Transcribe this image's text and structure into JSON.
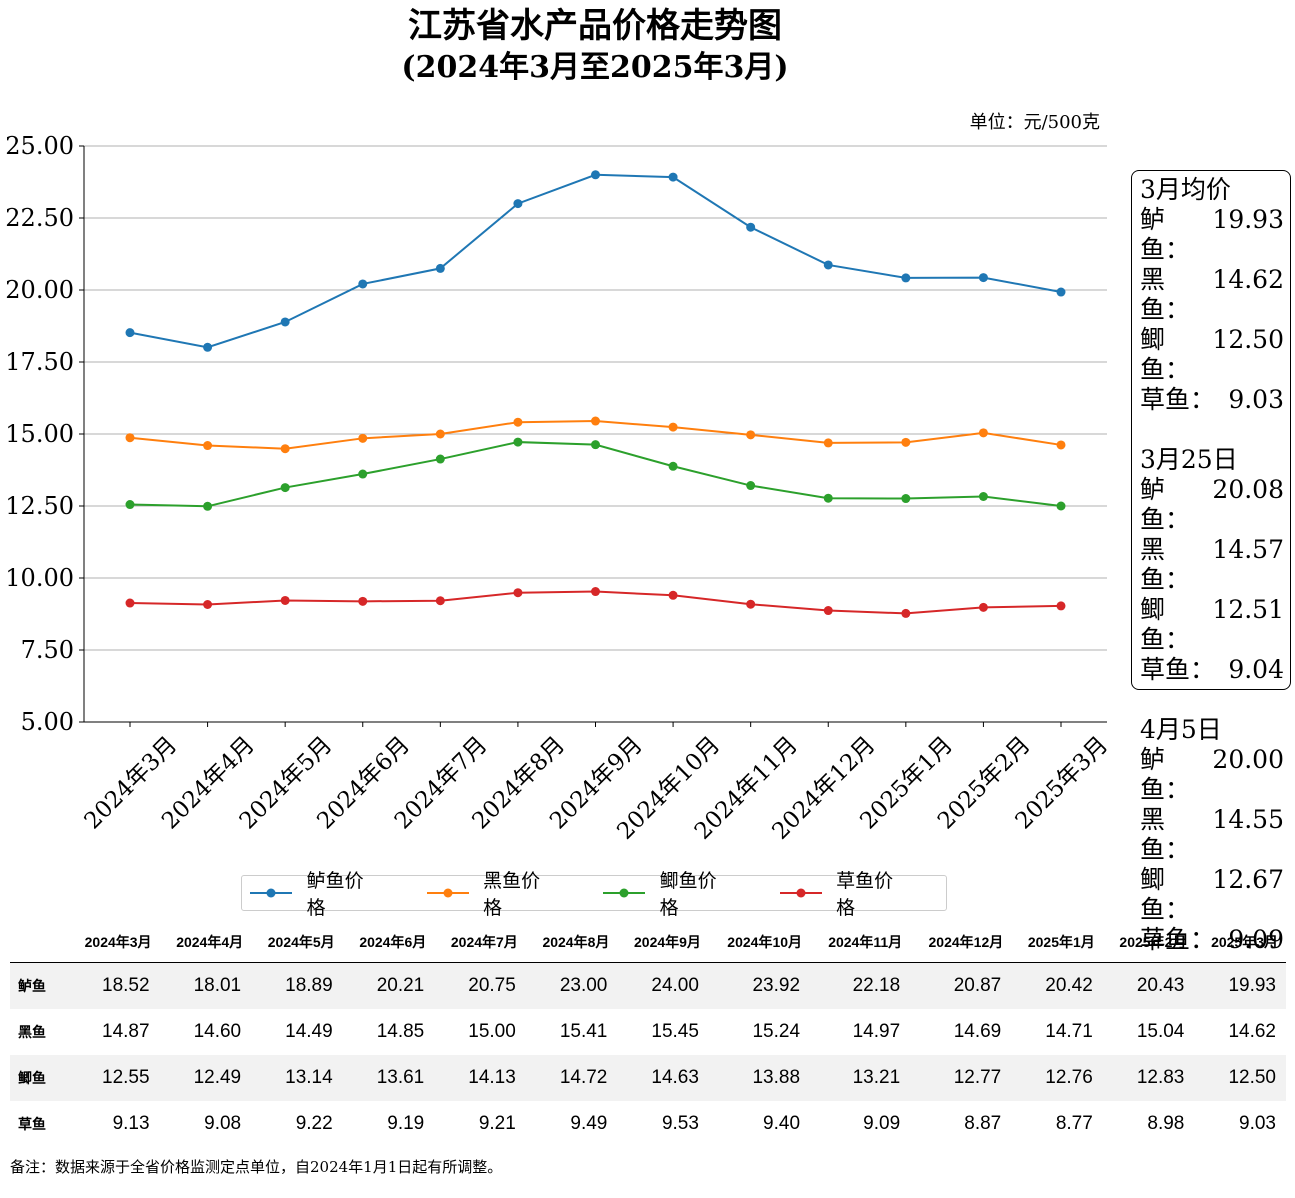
{
  "title_line1": "江苏省水产品价格走势图",
  "title_line2": "(2024年3月至2025年3月)",
  "unit": "单位：元/500克",
  "chart_data": {
    "type": "line",
    "categories": [
      "2024年3月",
      "2024年4月",
      "2024年5月",
      "2024年6月",
      "2024年7月",
      "2024年8月",
      "2024年9月",
      "2024年10月",
      "2024年11月",
      "2024年12月",
      "2025年1月",
      "2025年2月",
      "2025年3月"
    ],
    "ylim": [
      5.0,
      25.0
    ],
    "yticks": [
      "5.00",
      "7.50",
      "10.00",
      "12.50",
      "15.00",
      "17.50",
      "20.00",
      "22.50",
      "25.00"
    ],
    "grid": true,
    "legend_position": "bottom",
    "series": [
      {
        "name": "鲈鱼价格",
        "color": "#1f77b4",
        "values": [
          18.52,
          18.01,
          18.89,
          20.21,
          20.75,
          23.0,
          24.0,
          23.92,
          22.18,
          20.87,
          20.42,
          20.43,
          19.93
        ]
      },
      {
        "name": "黑鱼价格",
        "color": "#ff7f0e",
        "values": [
          14.87,
          14.6,
          14.49,
          14.85,
          15.0,
          15.41,
          15.45,
          15.24,
          14.97,
          14.69,
          14.71,
          15.04,
          14.62
        ]
      },
      {
        "name": "鲫鱼价格",
        "color": "#2ca02c",
        "values": [
          12.55,
          12.49,
          13.14,
          13.61,
          14.13,
          14.72,
          14.63,
          13.88,
          13.21,
          12.77,
          12.76,
          12.83,
          12.5
        ]
      },
      {
        "name": "草鱼价格",
        "color": "#d62728",
        "values": [
          9.13,
          9.08,
          9.22,
          9.19,
          9.21,
          9.49,
          9.53,
          9.4,
          9.09,
          8.87,
          8.77,
          8.98,
          9.03
        ]
      }
    ]
  },
  "infobox": [
    {
      "title": "3月均价",
      "rows": [
        [
          "鲈鱼：",
          "19.93"
        ],
        [
          "黑鱼：",
          "14.62"
        ],
        [
          "鲫鱼：",
          "12.50"
        ],
        [
          "草鱼：",
          "9.03"
        ]
      ]
    },
    {
      "title": "3月25日",
      "rows": [
        [
          "鲈鱼：",
          "20.08"
        ],
        [
          "黑鱼：",
          "14.57"
        ],
        [
          "鲫鱼：",
          "12.51"
        ],
        [
          "草鱼：",
          "9.04"
        ]
      ]
    },
    {
      "title": "4月5日",
      "rows": [
        [
          "鲈鱼：",
          "20.00"
        ],
        [
          "黑鱼：",
          "14.55"
        ],
        [
          "鲫鱼：",
          "12.67"
        ],
        [
          "草鱼：",
          "9.09"
        ]
      ]
    }
  ],
  "table": {
    "headers": [
      "2024年3月",
      "2024年4月",
      "2024年5月",
      "2024年6月",
      "2024年7月",
      "2024年8月",
      "2024年9月",
      "2024年10月",
      "2024年11月",
      "2024年12月",
      "2025年1月",
      "2025年2月",
      "2025年3月"
    ],
    "rows": [
      {
        "name": "鲈鱼",
        "values": [
          "18.52",
          "18.01",
          "18.89",
          "20.21",
          "20.75",
          "23.00",
          "24.00",
          "23.92",
          "22.18",
          "20.87",
          "20.42",
          "20.43",
          "19.93"
        ]
      },
      {
        "name": "黑鱼",
        "values": [
          "14.87",
          "14.60",
          "14.49",
          "14.85",
          "15.00",
          "15.41",
          "15.45",
          "15.24",
          "14.97",
          "14.69",
          "14.71",
          "15.04",
          "14.62"
        ]
      },
      {
        "name": "鲫鱼",
        "values": [
          "12.55",
          "12.49",
          "13.14",
          "13.61",
          "14.13",
          "14.72",
          "14.63",
          "13.88",
          "13.21",
          "12.77",
          "12.76",
          "12.83",
          "12.50"
        ]
      },
      {
        "name": "草鱼",
        "values": [
          "9.13",
          "9.08",
          "9.22",
          "9.19",
          "9.21",
          "9.49",
          "9.53",
          "9.40",
          "9.09",
          "8.87",
          "8.77",
          "8.98",
          "9.03"
        ]
      }
    ]
  },
  "note": "备注：数据来源于全省价格监测定点单位，自2024年1月1日起有所调整。"
}
